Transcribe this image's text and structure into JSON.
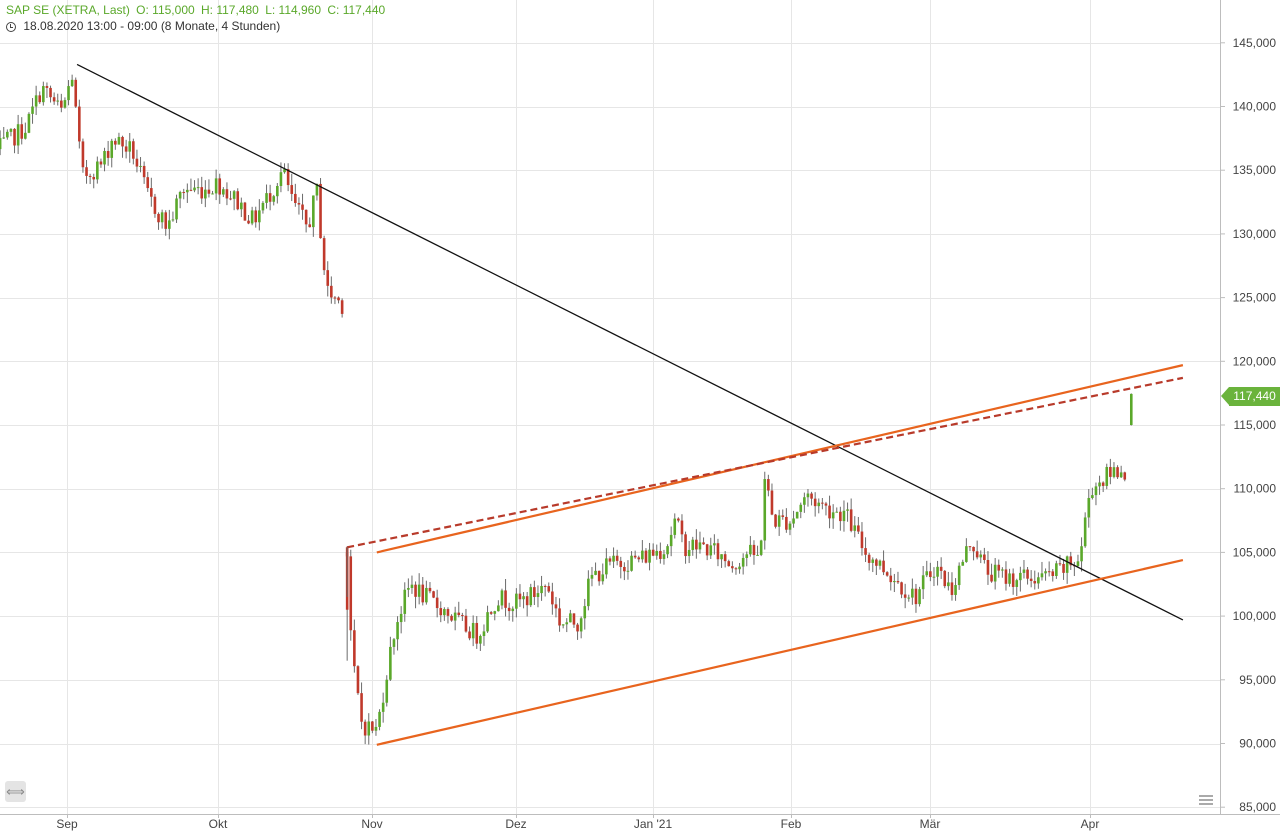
{
  "header": {
    "symbol": "SAP SE (XETRA, Last)",
    "open": "O: 115,000",
    "high": "H: 117,480",
    "low": "L: 114,960",
    "close": "C: 117,440",
    "period": "18.08.2020 13:00 - 09:00",
    "range": "(8 Monate, 4 Stunden)"
  },
  "last_price_label": "117,440",
  "colors": {
    "up": "#5aa82a",
    "down": "#c0392b",
    "trend_black": "#111111",
    "channel_orange": "#e8641e",
    "dashed_red": "#b83a2a",
    "grid": "#e6e6e6"
  },
  "icons": {
    "scroll": "double-arrow-icon",
    "menu": "menu-lines-icon"
  },
  "chart_data": {
    "type": "candlestick",
    "x_axis": {
      "ticks": [
        "Sep",
        "Okt",
        "Nov",
        "Dez",
        "Jan '21",
        "Feb",
        "Mär",
        "Apr"
      ]
    },
    "y_axis": {
      "side": "right",
      "ylim": [
        85000,
        145000
      ],
      "ticks": [
        145000,
        140000,
        135000,
        130000,
        125000,
        120000,
        115000,
        110000,
        105000,
        100000,
        95000,
        90000,
        85000
      ],
      "tick_labels": [
        "145,000",
        "140,000",
        "135,000",
        "130,000",
        "125,000",
        "120,000",
        "115,000",
        "110,000",
        "105,000",
        "100,000",
        "95,000",
        "90,000",
        "85,000"
      ]
    },
    "grid": true,
    "series_points": [
      [
        "2020-08-18",
        136.5
      ],
      [
        "2020-08-24",
        138.5
      ],
      [
        "2020-08-27",
        141.5
      ],
      [
        "2020-08-31",
        139.5
      ],
      [
        "2020-09-02",
        142.5
      ],
      [
        "2020-09-04",
        134.5
      ],
      [
        "2020-09-08",
        135.5
      ],
      [
        "2020-09-10",
        137.5
      ],
      [
        "2020-09-14",
        136.5
      ],
      [
        "2020-09-17",
        133.0
      ],
      [
        "2020-09-21",
        130.5
      ],
      [
        "2020-09-24",
        133.5
      ],
      [
        "2020-09-28",
        133.5
      ],
      [
        "2020-10-01",
        134.0
      ],
      [
        "2020-10-05",
        132.5
      ],
      [
        "2020-10-08",
        131.0
      ],
      [
        "2020-10-12",
        133.5
      ],
      [
        "2020-10-14",
        135.0
      ],
      [
        "2020-10-16",
        132.5
      ],
      [
        "2020-10-19",
        130.5
      ],
      [
        "2020-10-21",
        133.5
      ],
      [
        "2020-10-22",
        128.5
      ],
      [
        "2020-10-23",
        125.5
      ],
      [
        "2020-10-26",
        124.5
      ],
      [
        "2020-10-26",
        124.5
      ],
      [
        "2020-10-27",
        105.0
      ],
      [
        "2020-10-28",
        96.5
      ],
      [
        "2020-10-30",
        91.5
      ],
      [
        "2020-11-02",
        91.0
      ],
      [
        "2020-11-04",
        95.5
      ],
      [
        "2020-11-06",
        99.5
      ],
      [
        "2020-11-09",
        102.5
      ],
      [
        "2020-11-12",
        101.5
      ],
      [
        "2020-11-16",
        100.5
      ],
      [
        "2020-11-19",
        99.5
      ],
      [
        "2020-11-23",
        98.5
      ],
      [
        "2020-11-27",
        101.5
      ],
      [
        "2020-12-01",
        101.0
      ],
      [
        "2020-12-04",
        101.5
      ],
      [
        "2020-12-08",
        102.5
      ],
      [
        "2020-12-11",
        99.5
      ],
      [
        "2020-12-15",
        99.5
      ],
      [
        "2020-12-18",
        103.0
      ],
      [
        "2020-12-22",
        104.0
      ],
      [
        "2020-12-29",
        104.5
      ],
      [
        "2021-01-04",
        105.5
      ],
      [
        "2021-01-06",
        107.5
      ],
      [
        "2021-01-08",
        105.5
      ],
      [
        "2021-01-12",
        105.5
      ],
      [
        "2021-01-15",
        105.0
      ],
      [
        "2021-01-19",
        104.0
      ],
      [
        "2021-01-22",
        105.0
      ],
      [
        "2021-01-25",
        104.5
      ],
      [
        "2021-01-26",
        111.0
      ],
      [
        "2021-01-28",
        107.5
      ],
      [
        "2021-02-01",
        107.5
      ],
      [
        "2021-02-04",
        109.5
      ],
      [
        "2021-02-08",
        108.5
      ],
      [
        "2021-02-12",
        108.0
      ],
      [
        "2021-02-16",
        105.0
      ],
      [
        "2021-02-19",
        104.0
      ],
      [
        "2021-02-23",
        102.5
      ],
      [
        "2021-02-26",
        101.5
      ],
      [
        "2021-03-02",
        104.0
      ],
      [
        "2021-03-05",
        102.0
      ],
      [
        "2021-03-09",
        106.0
      ],
      [
        "2021-03-12",
        103.5
      ],
      [
        "2021-03-16",
        103.0
      ],
      [
        "2021-03-19",
        103.0
      ],
      [
        "2021-03-23",
        103.0
      ],
      [
        "2021-03-26",
        103.5
      ],
      [
        "2021-03-30",
        104.5
      ],
      [
        "2021-04-01",
        110.0
      ],
      [
        "2021-04-06",
        111.5
      ],
      [
        "2021-04-08",
        111.5
      ],
      [
        "2021-04-09",
        117.44
      ]
    ],
    "trendlines": [
      {
        "style": "solid",
        "color": "black",
        "from": [
          "2020-09-03",
          143.3
        ],
        "to": [
          "2021-04-19",
          99.7
        ]
      },
      {
        "style": "solid",
        "color": "orange",
        "from": [
          "2020-11-02",
          105.0
        ],
        "to": [
          "2021-04-19",
          119.7
        ]
      },
      {
        "style": "solid",
        "color": "orange",
        "from": [
          "2020-11-02",
          89.9
        ],
        "to": [
          "2021-04-19",
          104.4
        ]
      },
      {
        "style": "dashed",
        "color": "red",
        "from": [
          "2020-10-27",
          105.4
        ],
        "to": [
          "2021-04-19",
          118.7
        ]
      }
    ]
  }
}
